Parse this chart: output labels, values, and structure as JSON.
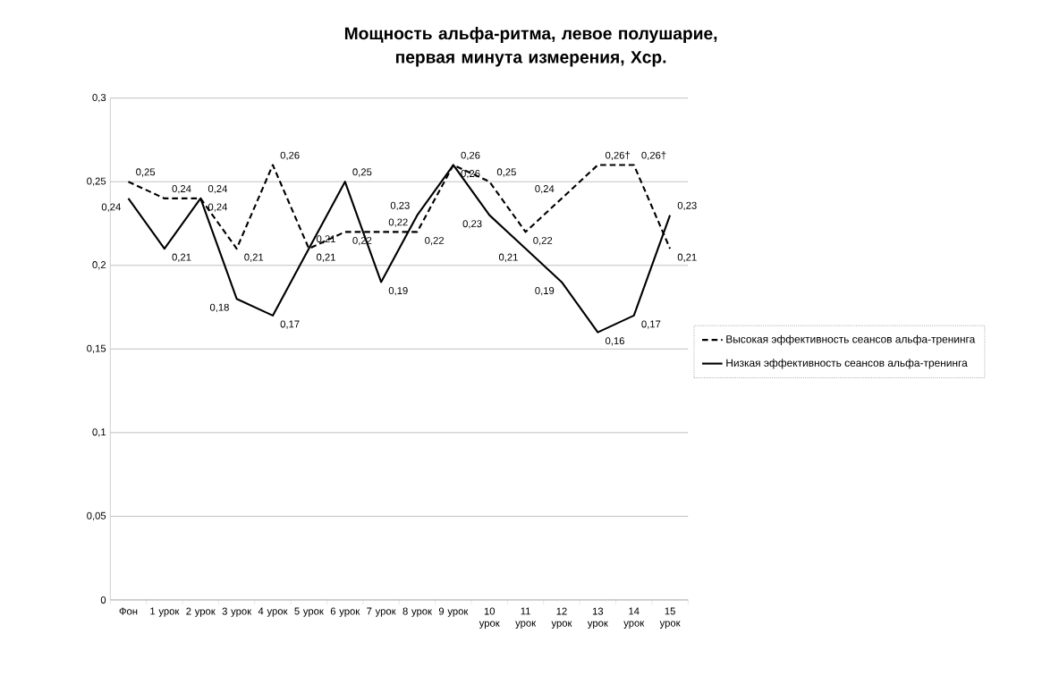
{
  "chart_data": {
    "type": "line",
    "title": "Мощность альфа-ритма, левое полушарие, первая минута измерения, Xср.",
    "categories": [
      "Фон",
      "1 урок",
      "2 урок",
      "3 урок",
      "4 урок",
      "5 урок",
      "6 урок",
      "7 урок",
      "8 урок",
      "9 урок",
      "10 урок",
      "11 урок",
      "12 урок",
      "13 урок",
      "14 урок",
      "15 урок"
    ],
    "series": [
      {
        "name": "Высокая эффективность  сеансов альфа-тренинга",
        "color": "#000000",
        "line_style": "dashed",
        "values": [
          0.25,
          0.24,
          0.24,
          0.21,
          0.26,
          0.21,
          0.22,
          0.22,
          0.22,
          0.26,
          0.25,
          0.22,
          0.24,
          0.26,
          0.26,
          0.21
        ],
        "value_labels": [
          "0,25",
          "0,24",
          "0,24",
          "0,21",
          "0,26",
          "0,21",
          "0,22",
          "0,22",
          "0,22",
          "0,26",
          "0,25",
          "0,22",
          "0,24",
          "0,26†",
          "0,26†",
          "0,21"
        ]
      },
      {
        "name": "Низкая эффективность  сеансов альфа-тренинга",
        "color": "#000000",
        "line_style": "solid",
        "values": [
          0.24,
          0.21,
          0.24,
          0.18,
          0.17,
          0.21,
          0.25,
          0.19,
          0.23,
          0.26,
          0.23,
          0.21,
          0.19,
          0.16,
          0.17,
          0.23
        ],
        "value_labels": [
          "0,24",
          "0,21",
          "0,24",
          "0,18",
          "0,17",
          "0,21",
          "0,25",
          "0,19",
          "0,23",
          "0,26",
          "0,23",
          "0,21",
          "0,19",
          "0,16",
          "0,17",
          "0,23"
        ]
      }
    ],
    "ylim": [
      0,
      0.3
    ],
    "yticks": [
      0,
      {
        "value": 0.05,
        "label": "0,05"
      },
      {
        "value": 0.1,
        "label": "0,1"
      },
      {
        "value": 0.15,
        "label": "0,15"
      },
      {
        "value": 0.2,
        "label": "0,2"
      },
      {
        "value": 0.25,
        "label": "0,25"
      },
      {
        "value": 0.3,
        "label": "0,3"
      }
    ],
    "grid": "y",
    "legend": "right"
  }
}
